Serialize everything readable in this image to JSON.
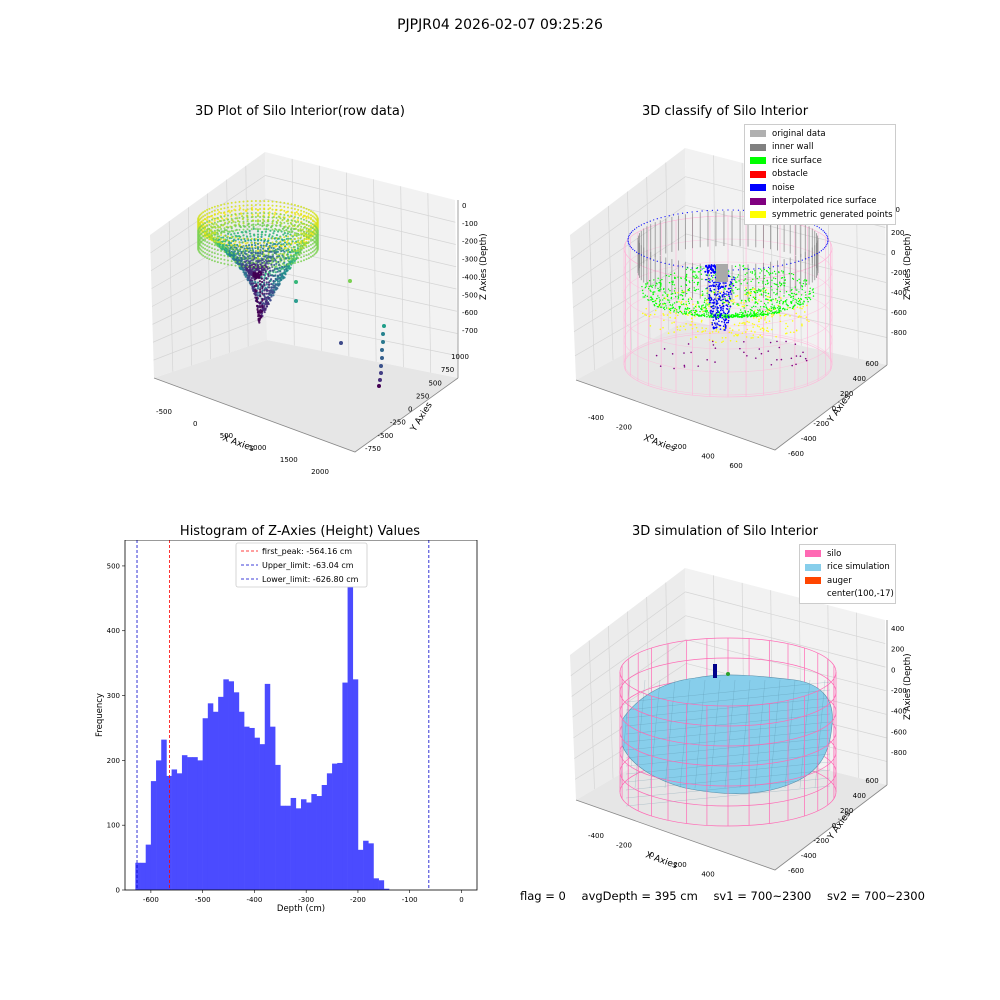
{
  "header": {
    "title": "PJPJR04 2026-02-07 09:25:26"
  },
  "panels": {
    "raw": {
      "title": "3D Plot of Silo Interior(row data)"
    },
    "classify": {
      "title": "3D classify of Silo Interior"
    },
    "simulation": {
      "title": "3D simulation of Silo Interior"
    }
  },
  "footer": {
    "flag": "flag = 0",
    "avg_depth": "avgDepth = 395 cm",
    "sv1": "sv1 = 700~2300",
    "sv2": "sv2 = 700~2300"
  },
  "colors": {
    "hist_bar": "#4b4bff",
    "first_peak": "#ff0000",
    "limit": "#0000cc",
    "silo": "#ff69b4",
    "rice": "#87ceeb",
    "auger": "#ff4500"
  },
  "chart_data": [
    {
      "type": "scatter3d",
      "title": "3D Plot of Silo Interior(row data)",
      "xlabel": "X Axies",
      "ylabel": "Y Axies",
      "zlabel": "Z Axies (Depth)",
      "x_ticks": [
        "-500",
        "0",
        "500",
        "1000",
        "1500",
        "2000"
      ],
      "y_ticks": [
        "-750",
        "-500",
        "-250",
        "0",
        "250",
        "500",
        "750",
        "1000"
      ],
      "z_ticks": [
        "0",
        "-100",
        "-200",
        "-300",
        "-400",
        "-500",
        "-600",
        "-700"
      ]
    },
    {
      "type": "scatter3d",
      "title": "3D classify of Silo Interior",
      "xlabel": "X Axies",
      "ylabel": "Y Axies",
      "zlabel": "Z Axies (Depth)",
      "x_ticks": [
        "-400",
        "-200",
        "0",
        "200",
        "400",
        "600"
      ],
      "y_ticks": [
        "-600",
        "-400",
        "-200",
        "0",
        "200",
        "400",
        "600"
      ],
      "z_ticks": [
        "200",
        "0",
        "-200",
        "-400",
        "-600",
        "-800"
      ],
      "z_top_tick_partial": "00",
      "legend": [
        {
          "label": "original data",
          "color": "#b0b0b0"
        },
        {
          "label": "inner wall",
          "color": "#808080"
        },
        {
          "label": "rice surface",
          "color": "#00ff00"
        },
        {
          "label": "obstacle",
          "color": "#ff0000"
        },
        {
          "label": "noise",
          "color": "#0000ff"
        },
        {
          "label": "interpolated rice surface",
          "color": "#800080"
        },
        {
          "label": "symmetric generated points",
          "color": "#ffff00"
        }
      ]
    },
    {
      "type": "bar",
      "title": "Histogram of Z-Axies (Height) Values",
      "xlabel": "Depth (cm)",
      "ylabel": "Frequency",
      "xlim": [
        -650,
        30
      ],
      "ylim": [
        0,
        540
      ],
      "x_ticks": [
        -600,
        -500,
        -400,
        -300,
        -200,
        -100,
        0
      ],
      "y_ticks": [
        0,
        100,
        200,
        300,
        400,
        500
      ],
      "bin_start": -630,
      "bin_width": 10,
      "values": [
        42,
        42,
        70,
        168,
        200,
        232,
        176,
        186,
        180,
        208,
        205,
        205,
        200,
        265,
        288,
        275,
        298,
        325,
        322,
        305,
        275,
        252,
        250,
        235,
        225,
        318,
        252,
        193,
        130,
        130,
        142,
        126,
        140,
        135,
        148,
        145,
        162,
        180,
        195,
        196,
        320,
        513,
        325,
        62,
        76,
        72,
        18,
        15,
        2
      ],
      "lines": [
        {
          "label": "first_peak: -564.16 cm",
          "x": -564.16,
          "color": "#ff0000"
        },
        {
          "label": "Upper_limit: -63.04 cm",
          "x": -63.04,
          "color": "#0000cc"
        },
        {
          "label": "Lower_limit: -626.80 cm",
          "x": -626.8,
          "color": "#0000cc"
        }
      ],
      "legend_position": "upper-center"
    },
    {
      "type": "surface3d",
      "title": "3D simulation of Silo Interior",
      "xlabel": "X Axies",
      "ylabel": "Y Axies",
      "zlabel": "Z Axies (Depth)",
      "x_ticks": [
        "-400",
        "-200",
        "0",
        "200",
        "400",
        "600"
      ],
      "y_ticks": [
        "-600",
        "-400",
        "-200",
        "0",
        "200",
        "400",
        "600"
      ],
      "z_ticks": [
        "400",
        "200",
        "0",
        "-200",
        "-400",
        "-600",
        "-800"
      ],
      "legend": [
        {
          "label": "silo",
          "color": "#ff69b4"
        },
        {
          "label": "rice simulation",
          "color": "#87ceeb"
        },
        {
          "label": "auger",
          "color": "#ff4500"
        },
        {
          "label": "center(100,-17)",
          "color": ""
        }
      ]
    }
  ]
}
